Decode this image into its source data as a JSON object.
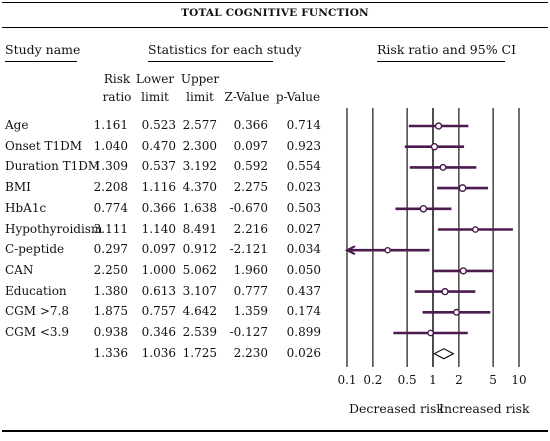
{
  "title": "TOTAL COGNITIVE FUNCTION",
  "headers": {
    "study_name": "Study name",
    "stats": "Statistics for each study",
    "ci": "Risk ratio and 95% CI",
    "columns": [
      {
        "key": "rr",
        "line1": "Risk",
        "line2": "ratio"
      },
      {
        "key": "lo",
        "line1": "Lower",
        "line2": "limit"
      },
      {
        "key": "hi",
        "line1": "Upper",
        "line2": "limit"
      },
      {
        "key": "z",
        "line1": "",
        "line2": "Z-Value"
      },
      {
        "key": "p",
        "line1": "",
        "line2": "p-Value"
      }
    ]
  },
  "rows": [
    {
      "name": "Age",
      "rr": "1.161",
      "lo": "0.523",
      "hi": "2.577",
      "z": "0.366",
      "p": "0.714"
    },
    {
      "name": "Onset T1DM",
      "rr": "1.040",
      "lo": "0.470",
      "hi": "2.300",
      "z": "0.097",
      "p": "0.923"
    },
    {
      "name": "Duration T1DM",
      "rr": "1.309",
      "lo": "0.537",
      "hi": "3.192",
      "z": "0.592",
      "p": "0.554"
    },
    {
      "name": "BMI",
      "rr": "2.208",
      "lo": "1.116",
      "hi": "4.370",
      "z": "2.275",
      "p": "0.023"
    },
    {
      "name": "HbA1c",
      "rr": "0.774",
      "lo": "0.366",
      "hi": "1.638",
      "z": "-0.670",
      "p": "0.503"
    },
    {
      "name": "Hypothyroidism",
      "rr": "3.111",
      "lo": "1.140",
      "hi": "8.491",
      "z": "2.216",
      "p": "0.027"
    },
    {
      "name": "C-peptide",
      "rr": "0.297",
      "lo": "0.097",
      "hi": "0.912",
      "z": "-2.121",
      "p": "0.034"
    },
    {
      "name": "CAN",
      "rr": "2.250",
      "lo": "1.000",
      "hi": "5.062",
      "z": "1.960",
      "p": "0.050"
    },
    {
      "name": "Education",
      "rr": "1.380",
      "lo": "0.613",
      "hi": "3.107",
      "z": "0.777",
      "p": "0.437"
    },
    {
      "name": "CGM >7.8",
      "rr": "1.875",
      "lo": "0.757",
      "hi": "4.642",
      "z": "1.359",
      "p": "0.174"
    },
    {
      "name": "CGM <3.9",
      "rr": "0.938",
      "lo": "0.346",
      "hi": "2.539",
      "z": "-0.127",
      "p": "0.899"
    },
    {
      "name": "",
      "rr": "1.336",
      "lo": "1.036",
      "hi": "1.725",
      "z": "2.230",
      "p": "0.026",
      "summary": true
    }
  ],
  "chart_data": {
    "type": "forest",
    "title": "TOTAL COGNITIVE FUNCTION",
    "scale": "log",
    "x_ticks": [
      {
        "value": 0.1,
        "label": "0.1"
      },
      {
        "value": 0.2,
        "label": "0.2"
      },
      {
        "value": 0.5,
        "label": "0.5"
      },
      {
        "value": 1,
        "label": "1"
      },
      {
        "value": 2,
        "label": "2"
      },
      {
        "value": 5,
        "label": "5"
      },
      {
        "value": 10,
        "label": "10"
      }
    ],
    "xlim": [
      0.1,
      10
    ],
    "footer_left": "Decreased risk",
    "footer_right": "Increased risk",
    "line_color": "#4b1a4f",
    "summary": {
      "rr": 1.336,
      "lo": 1.036,
      "hi": 1.725
    }
  }
}
